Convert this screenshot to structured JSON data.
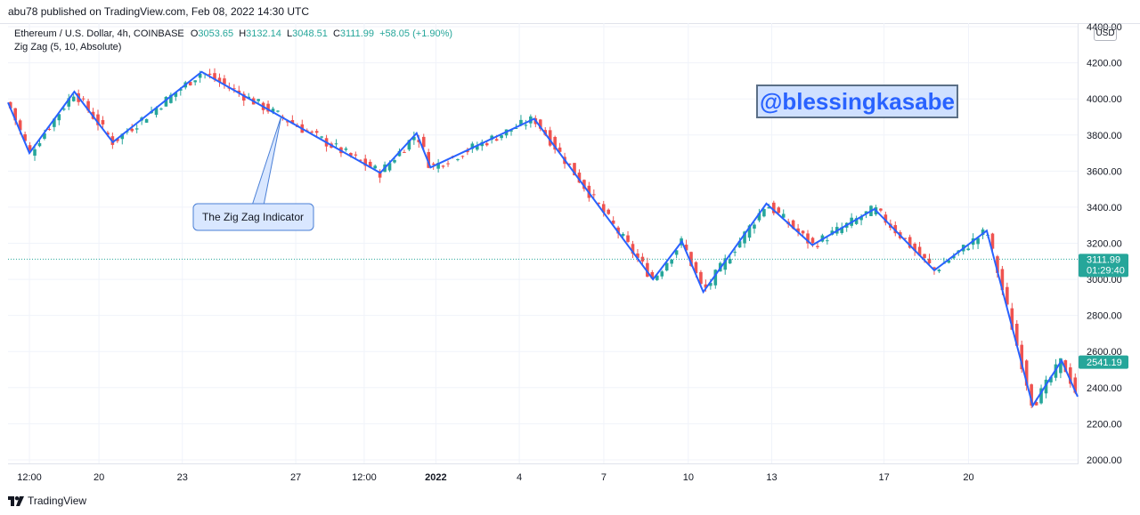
{
  "header": {
    "published": "abu78 published on TradingView.com, Feb 08, 2022 14:30 UTC"
  },
  "legend": {
    "symbol": "Ethereum / U.S. Dollar, 4h, COINBASE",
    "open_label": "O",
    "open": "3053.65",
    "high_label": "H",
    "high": "3132.14",
    "low_label": "L",
    "low": "3048.51",
    "close_label": "C",
    "close": "3111.99",
    "change": "+58.05 (+1.90%)",
    "indicator": "Zig Zag (5, 10, Absolute)"
  },
  "currency_badge": "USD",
  "watermark": "@blessingkasabe",
  "annotation": "The Zig Zag Indicator",
  "footer": {
    "brand": "TradingView"
  },
  "colors": {
    "up": "#26a69a",
    "down": "#ef5350",
    "zigzag": "#2962ff",
    "annotation_bg": "#d9e7ff"
  },
  "chart_data": {
    "type": "line",
    "yticks": [
      "4400.00",
      "4200.00",
      "4000.00",
      "3800.00",
      "3600.00",
      "3400.00",
      "3200.00",
      "3000.00",
      "2800.00",
      "2600.00",
      "2400.00",
      "2200.00",
      "2000.00"
    ],
    "ytick_values": [
      4400,
      4200,
      4000,
      3800,
      3600,
      3400,
      3200,
      3000,
      2800,
      2600,
      2400,
      2200,
      2000
    ],
    "ylim": [
      1980,
      4420
    ],
    "xticks": [
      {
        "label": "12:00",
        "pos": 0.02
      },
      {
        "label": "20",
        "pos": 0.085
      },
      {
        "label": "23",
        "pos": 0.163
      },
      {
        "label": "27",
        "pos": 0.269
      },
      {
        "label": "12:00",
        "pos": 0.333
      },
      {
        "label": "2022",
        "pos": 0.4,
        "bold": true
      },
      {
        "label": "4",
        "pos": 0.478
      },
      {
        "label": "7",
        "pos": 0.557
      },
      {
        "label": "10",
        "pos": 0.636
      },
      {
        "label": "13",
        "pos": 0.714
      },
      {
        "label": "17",
        "pos": 0.819
      },
      {
        "label": "20",
        "pos": 0.898
      }
    ],
    "last_price_label": "3111.99",
    "last_price_value": 3111.99,
    "countdown": "01:29:40",
    "second_price_label": "2541.19",
    "second_price_value": 2541.19,
    "zigzag_series": {
      "name": "Zig Zag (5, 10, Absolute)",
      "points": [
        {
          "x": 0.0,
          "y": 3980
        },
        {
          "x": 0.02,
          "y": 3700
        },
        {
          "x": 0.062,
          "y": 4040
        },
        {
          "x": 0.098,
          "y": 3760
        },
        {
          "x": 0.181,
          "y": 4150
        },
        {
          "x": 0.348,
          "y": 3590
        },
        {
          "x": 0.382,
          "y": 3810
        },
        {
          "x": 0.395,
          "y": 3620
        },
        {
          "x": 0.492,
          "y": 3890
        },
        {
          "x": 0.603,
          "y": 3000
        },
        {
          "x": 0.63,
          "y": 3210
        },
        {
          "x": 0.65,
          "y": 2930
        },
        {
          "x": 0.709,
          "y": 3420
        },
        {
          "x": 0.752,
          "y": 3190
        },
        {
          "x": 0.81,
          "y": 3390
        },
        {
          "x": 0.866,
          "y": 3050
        },
        {
          "x": 0.915,
          "y": 3270
        },
        {
          "x": 0.958,
          "y": 2300
        },
        {
          "x": 0.985,
          "y": 2550
        },
        {
          "x": 1.0,
          "y": 2350
        }
      ]
    }
  }
}
